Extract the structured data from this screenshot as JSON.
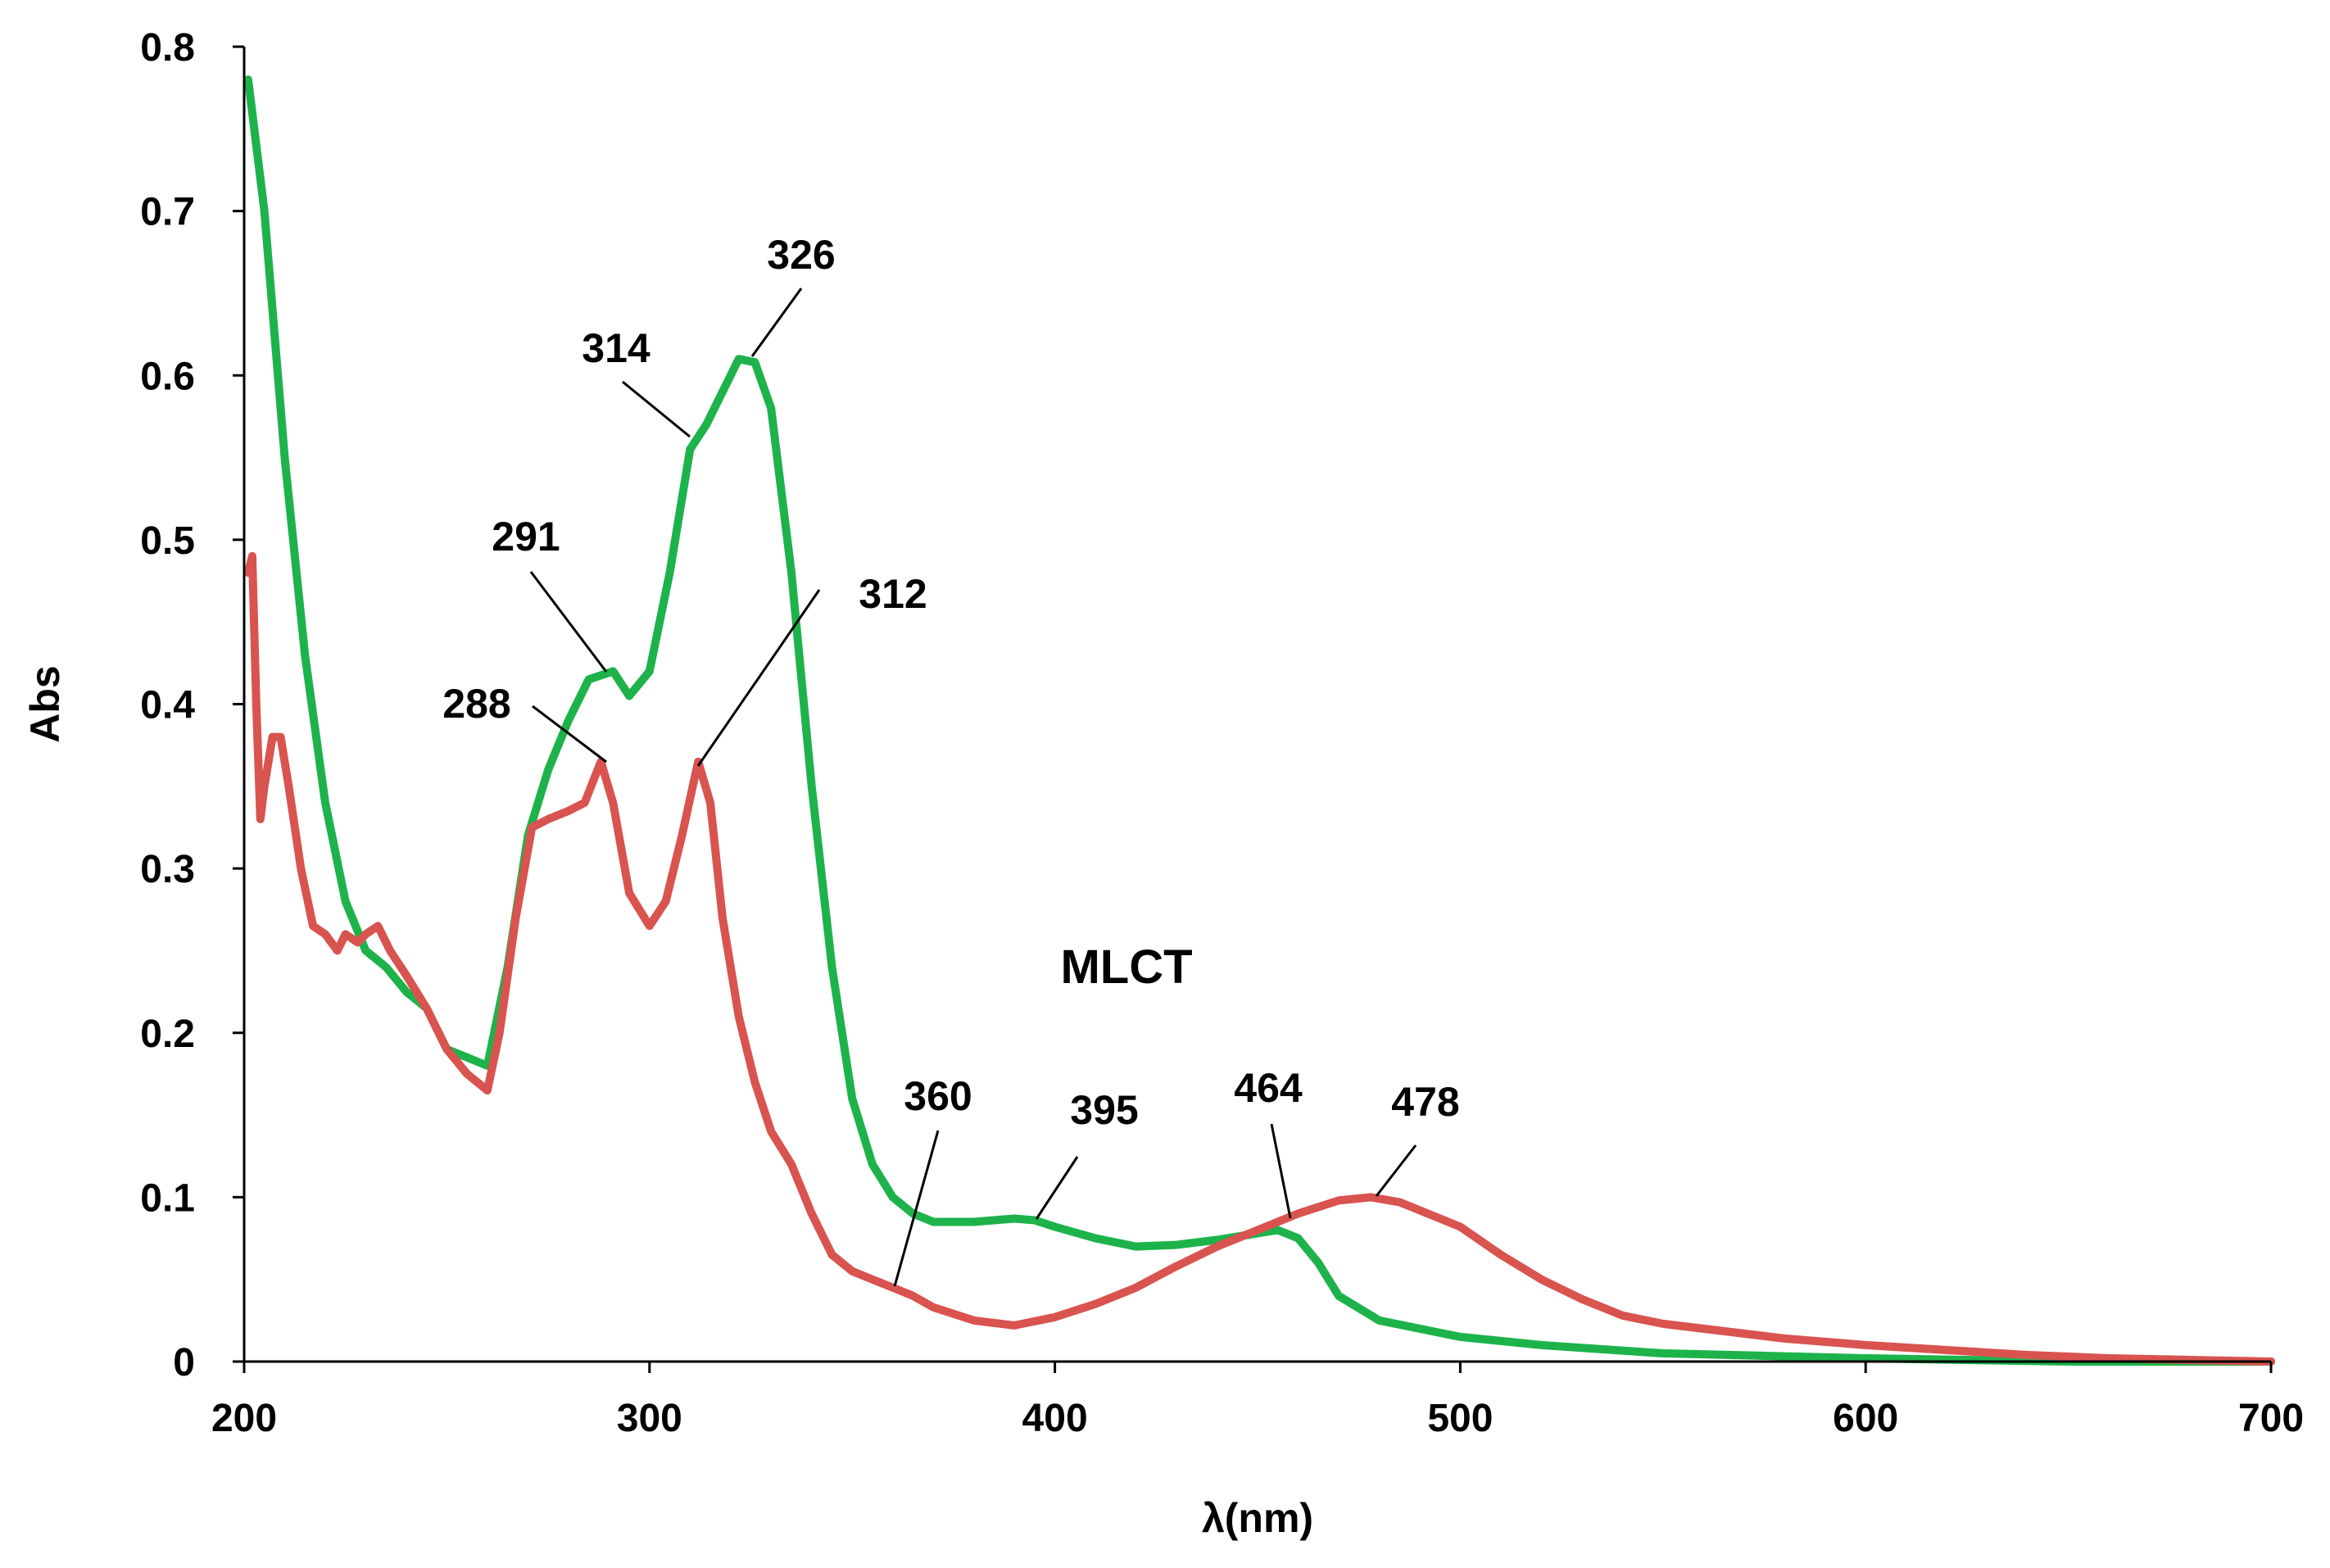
{
  "chart_data": {
    "type": "line",
    "xlabel": "λ(nm)",
    "ylabel": "Abs",
    "xlim": [
      200,
      700
    ],
    "ylim": [
      0,
      0.8
    ],
    "xticks": [
      "200",
      "300",
      "400",
      "500",
      "600",
      "700"
    ],
    "yticks": [
      "0",
      "0.1",
      "0.2",
      "0.3",
      "0.4",
      "0.5",
      "0.6",
      "0.7",
      "0.8"
    ],
    "grid": false,
    "legend": "none",
    "series": [
      {
        "color": "#1db34a",
        "points": [
          [
            201,
            0.78
          ],
          [
            205,
            0.7
          ],
          [
            210,
            0.55
          ],
          [
            215,
            0.43
          ],
          [
            220,
            0.34
          ],
          [
            225,
            0.28
          ],
          [
            230,
            0.25
          ],
          [
            235,
            0.24
          ],
          [
            240,
            0.225
          ],
          [
            245,
            0.215
          ],
          [
            250,
            0.19
          ],
          [
            255,
            0.185
          ],
          [
            260,
            0.18
          ],
          [
            265,
            0.24
          ],
          [
            270,
            0.32
          ],
          [
            275,
            0.36
          ],
          [
            280,
            0.39
          ],
          [
            285,
            0.415
          ],
          [
            291,
            0.42
          ],
          [
            295,
            0.405
          ],
          [
            300,
            0.42
          ],
          [
            305,
            0.48
          ],
          [
            310,
            0.555
          ],
          [
            314,
            0.57
          ],
          [
            318,
            0.59
          ],
          [
            322,
            0.61
          ],
          [
            326,
            0.608
          ],
          [
            330,
            0.58
          ],
          [
            335,
            0.48
          ],
          [
            340,
            0.35
          ],
          [
            345,
            0.24
          ],
          [
            350,
            0.16
          ],
          [
            355,
            0.12
          ],
          [
            360,
            0.1
          ],
          [
            365,
            0.09
          ],
          [
            370,
            0.085
          ],
          [
            380,
            0.085
          ],
          [
            390,
            0.087
          ],
          [
            395,
            0.086
          ],
          [
            400,
            0.082
          ],
          [
            410,
            0.075
          ],
          [
            420,
            0.07
          ],
          [
            430,
            0.071
          ],
          [
            440,
            0.074
          ],
          [
            450,
            0.078
          ],
          [
            455,
            0.08
          ],
          [
            460,
            0.075
          ],
          [
            465,
            0.06
          ],
          [
            470,
            0.04
          ],
          [
            480,
            0.025
          ],
          [
            490,
            0.02
          ],
          [
            500,
            0.015
          ],
          [
            520,
            0.01
          ],
          [
            550,
            0.005
          ],
          [
            600,
            0.002
          ],
          [
            650,
            0.0
          ],
          [
            700,
            0.0
          ]
        ]
      },
      {
        "color": "#d9534f",
        "points": [
          [
            201,
            0.48
          ],
          [
            202,
            0.49
          ],
          [
            203,
            0.4
          ],
          [
            204,
            0.33
          ],
          [
            205,
            0.35
          ],
          [
            207,
            0.38
          ],
          [
            209,
            0.38
          ],
          [
            211,
            0.35
          ],
          [
            214,
            0.3
          ],
          [
            217,
            0.265
          ],
          [
            220,
            0.26
          ],
          [
            223,
            0.25
          ],
          [
            225,
            0.26
          ],
          [
            228,
            0.255
          ],
          [
            230,
            0.26
          ],
          [
            233,
            0.265
          ],
          [
            236,
            0.25
          ],
          [
            240,
            0.235
          ],
          [
            245,
            0.215
          ],
          [
            250,
            0.19
          ],
          [
            255,
            0.175
          ],
          [
            260,
            0.165
          ],
          [
            263,
            0.2
          ],
          [
            267,
            0.27
          ],
          [
            271,
            0.325
          ],
          [
            275,
            0.33
          ],
          [
            280,
            0.335
          ],
          [
            284,
            0.34
          ],
          [
            288,
            0.365
          ],
          [
            291,
            0.34
          ],
          [
            295,
            0.285
          ],
          [
            300,
            0.265
          ],
          [
            304,
            0.28
          ],
          [
            308,
            0.32
          ],
          [
            312,
            0.365
          ],
          [
            315,
            0.34
          ],
          [
            318,
            0.27
          ],
          [
            322,
            0.21
          ],
          [
            326,
            0.17
          ],
          [
            330,
            0.14
          ],
          [
            335,
            0.12
          ],
          [
            340,
            0.09
          ],
          [
            345,
            0.065
          ],
          [
            350,
            0.055
          ],
          [
            355,
            0.05
          ],
          [
            360,
            0.045
          ],
          [
            365,
            0.04
          ],
          [
            370,
            0.033
          ],
          [
            380,
            0.025
          ],
          [
            390,
            0.022
          ],
          [
            400,
            0.027
          ],
          [
            410,
            0.035
          ],
          [
            420,
            0.045
          ],
          [
            430,
            0.058
          ],
          [
            440,
            0.07
          ],
          [
            450,
            0.08
          ],
          [
            460,
            0.09
          ],
          [
            470,
            0.098
          ],
          [
            478,
            0.1
          ],
          [
            485,
            0.097
          ],
          [
            490,
            0.092
          ],
          [
            500,
            0.082
          ],
          [
            510,
            0.065
          ],
          [
            520,
            0.05
          ],
          [
            530,
            0.038
          ],
          [
            540,
            0.028
          ],
          [
            550,
            0.023
          ],
          [
            560,
            0.02
          ],
          [
            570,
            0.017
          ],
          [
            580,
            0.014
          ],
          [
            600,
            0.01
          ],
          [
            620,
            0.007
          ],
          [
            640,
            0.004
          ],
          [
            660,
            0.002
          ],
          [
            680,
            0.001
          ],
          [
            700,
            0.0
          ]
        ]
      }
    ],
    "annotations": [
      {
        "text": "326",
        "x": 326,
        "y": 0.608
      },
      {
        "text": "314",
        "x": 314,
        "y": 0.57
      },
      {
        "text": "291",
        "x": 291,
        "y": 0.42
      },
      {
        "text": "312",
        "x": 312,
        "y": 0.365
      },
      {
        "text": "288",
        "x": 288,
        "y": 0.365
      },
      {
        "text": "360",
        "x": 360,
        "y": 0.045
      },
      {
        "text": "395",
        "x": 395,
        "y": 0.086
      },
      {
        "text": "464",
        "x": 464,
        "y": 0.09
      },
      {
        "text": "478",
        "x": 478,
        "y": 0.1
      }
    ],
    "band_label": "MLCT"
  }
}
